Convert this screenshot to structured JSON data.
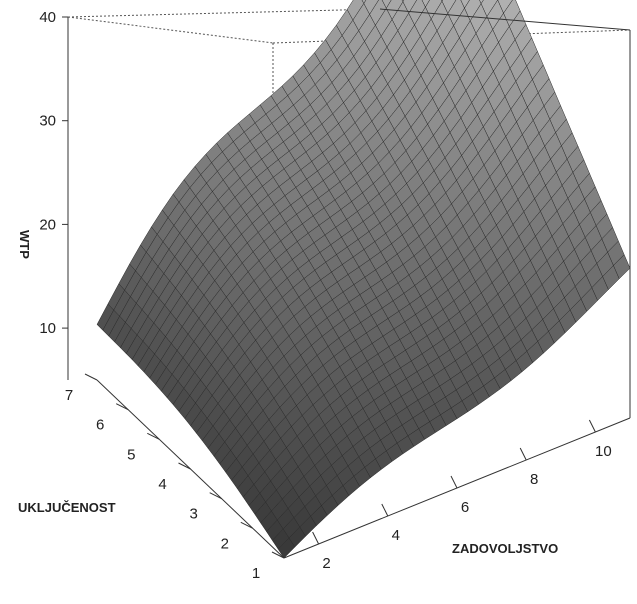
{
  "chart_data": {
    "type": "surface",
    "zlabel": "WTP",
    "xlabel": "ZADOVOLJSTVO",
    "ylabel": "UKLJUČENOST",
    "x_ticks": [
      "2",
      "4",
      "6",
      "8",
      "10"
    ],
    "y_ticks": [
      "1",
      "2",
      "3",
      "4",
      "5",
      "6",
      "7"
    ],
    "z_ticks": [
      "10",
      "20",
      "30",
      "40"
    ],
    "xlim": [
      1,
      11
    ],
    "ylim": [
      1,
      7
    ],
    "zlim": [
      5,
      40
    ],
    "corner_values": {
      "x1_y1": 5,
      "x1_y7": 10,
      "x11_y1": 18,
      "x11_y7": 41
    },
    "grid": false,
    "surface_color": "#8a8a8a",
    "mesh_line_color": "#2a2a2a"
  }
}
